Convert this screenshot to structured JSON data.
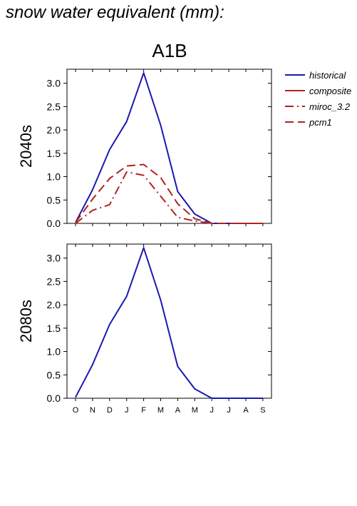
{
  "page": {
    "title": "snow water equivalent (mm):"
  },
  "colors": {
    "historical": "#1a1aaf",
    "future": "#b22222",
    "axis": "#000000"
  },
  "chart_data": [
    {
      "type": "line",
      "title": "A1B",
      "ylabel": "2040s",
      "categories": [
        "O",
        "N",
        "D",
        "J",
        "F",
        "M",
        "A",
        "M",
        "J",
        "J",
        "A",
        "S"
      ],
      "ylim": [
        0,
        3.3
      ],
      "yticks": [
        "0.0",
        "0.5",
        "1.0",
        "1.5",
        "2.0",
        "2.5",
        "3.0"
      ],
      "legend": {
        "placement": "right",
        "entries": [
          {
            "name": "historical",
            "style": "solid",
            "color": "#1a1aaf"
          },
          {
            "name": "composite",
            "style": "solid",
            "color": "#b22222"
          },
          {
            "name": "miroc_3.2",
            "style": "dashdot",
            "color": "#b22222"
          },
          {
            "name": "pcm1",
            "style": "dash",
            "color": "#b22222"
          }
        ]
      },
      "series": [
        {
          "name": "historical",
          "style": "solid",
          "color": "#1a1aaf",
          "values": [
            0.02,
            0.72,
            1.58,
            2.18,
            3.22,
            2.1,
            0.68,
            0.2,
            0.0,
            0.0,
            0.0,
            0.0
          ]
        },
        {
          "name": "miroc_3.2",
          "style": "dashdot",
          "color": "#b22222",
          "values": [
            0.0,
            0.28,
            0.4,
            1.1,
            1.03,
            0.58,
            0.13,
            0.05,
            0.0,
            0.0,
            0.0,
            0.0
          ]
        },
        {
          "name": "pcm1",
          "style": "dash",
          "color": "#b22222",
          "values": [
            0.02,
            0.52,
            0.96,
            1.23,
            1.26,
            0.98,
            0.42,
            0.1,
            0.0,
            0.0,
            0.0,
            0.0
          ]
        }
      ]
    },
    {
      "type": "line",
      "title": "",
      "ylabel": "2080s",
      "categories": [
        "O",
        "N",
        "D",
        "J",
        "F",
        "M",
        "A",
        "M",
        "J",
        "J",
        "A",
        "S"
      ],
      "ylim": [
        0,
        3.3
      ],
      "yticks": [
        "0.0",
        "0.5",
        "1.0",
        "1.5",
        "2.0",
        "2.5",
        "3.0"
      ],
      "series": [
        {
          "name": "historical",
          "style": "solid",
          "color": "#1a1aaf",
          "values": [
            0.02,
            0.72,
            1.58,
            2.18,
            3.22,
            2.1,
            0.68,
            0.2,
            0.0,
            0.0,
            0.0,
            0.0
          ]
        }
      ]
    }
  ]
}
